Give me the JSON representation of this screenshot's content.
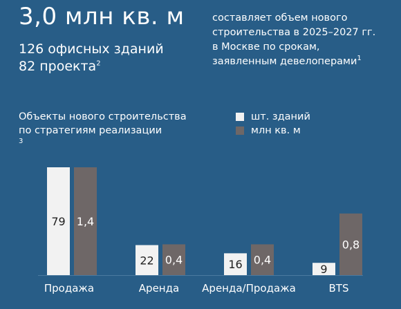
{
  "header": {
    "headline": "3,0 млн кв. м",
    "stat_buildings": "126 офисных зданий",
    "stat_projects": "82 проекта",
    "stat_projects_note": "2",
    "description": [
      "составляет объем нового",
      "строительства в 2025–2027 гг.",
      "в Москве по срокам,",
      "заявленным девелоперами"
    ],
    "description_note": "1"
  },
  "chart_data": {
    "type": "bar",
    "title_lines": [
      "Объекты нового строительства",
      "по стратегиям реализации"
    ],
    "title_note": "3",
    "categories": [
      "Продажа",
      "Аренда",
      "Аренда/Продажа",
      "BTS"
    ],
    "series": [
      {
        "name": "шт. зданий",
        "values": [
          79,
          22,
          16,
          9
        ],
        "labels": [
          "79",
          "22",
          "16",
          "9"
        ],
        "color": "#f2f2f2",
        "label_color": "#1f1f1f"
      },
      {
        "name": "млн кв. м",
        "values": [
          1.4,
          0.4,
          0.4,
          0.8
        ],
        "labels": [
          "1,4",
          "0,4",
          "0,4",
          "0,8"
        ],
        "color": "#6e6767",
        "label_color": "#ffffff"
      }
    ],
    "ylim_buildings": [
      0,
      79
    ],
    "ylim_area": [
      0,
      1.4
    ],
    "grid": false,
    "legend_position": "top-right"
  },
  "colors": {
    "background": "#285d87",
    "text": "#ffffff",
    "baseline": "#4b7aa0"
  }
}
